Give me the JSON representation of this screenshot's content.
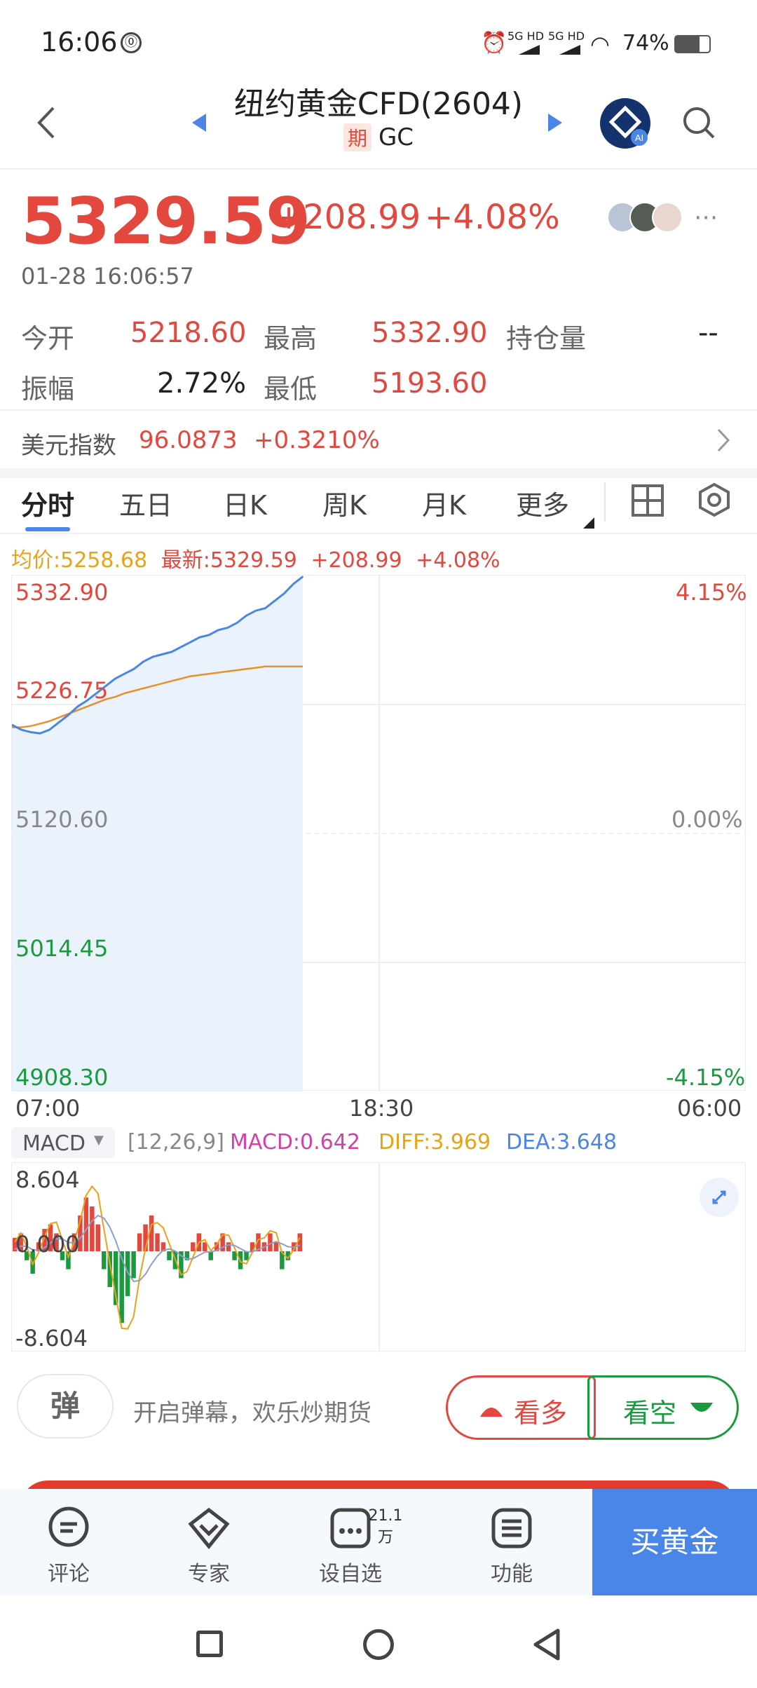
{
  "status_bar": {
    "time": "16:06",
    "net1": "5G HD",
    "net2": "5G HD",
    "battery": "74%"
  },
  "header": {
    "title": "纽约黄金CFD(2604)",
    "tag": "期",
    "code": "GC"
  },
  "quote": {
    "price": "5329.59",
    "change": "+208.99",
    "change_pct": "+4.08%",
    "timestamp": "01-28 16:06:57"
  },
  "stats": {
    "open_label": "今开",
    "open_value": "5218.60",
    "high_label": "最高",
    "high_value": "5332.90",
    "oi_label": "持仓量",
    "oi_value": "--",
    "amp_label": "振幅",
    "amp_value": "2.72%",
    "low_label": "最低",
    "low_value": "5193.60"
  },
  "dxy": {
    "label": "美元指数",
    "value": "96.0873",
    "change": "+0.3210%"
  },
  "tabs": [
    "分时",
    "五日",
    "日K",
    "周K",
    "月K",
    "更多"
  ],
  "legend": {
    "avg": "均价:5258.68",
    "last": "最新:5329.59",
    "chg": "+208.99",
    "pct": "+4.08%"
  },
  "chart_data": {
    "type": "line",
    "y_ticks": [
      "5332.90",
      "5226.75",
      "5120.60",
      "5014.45",
      "4908.30"
    ],
    "pct_ticks": [
      "4.15%",
      "0.00%",
      "-4.15%"
    ],
    "x_ticks": [
      "07:00",
      "18:30",
      "06:00"
    ],
    "ylim": [
      4908.3,
      5332.9
    ],
    "series": [
      {
        "name": "最新",
        "color": "#4a86e8",
        "values": [
          5210,
          5206,
          5204,
          5203,
          5206,
          5212,
          5218,
          5225,
          5230,
          5236,
          5242,
          5248,
          5252,
          5256,
          5262,
          5266,
          5268,
          5270,
          5274,
          5278,
          5282,
          5284,
          5288,
          5290,
          5294,
          5300,
          5304,
          5306,
          5312,
          5318,
          5326,
          5332
        ]
      },
      {
        "name": "均价",
        "color": "#e8912b",
        "values": [
          5208,
          5208,
          5209,
          5211,
          5213,
          5216,
          5219,
          5222,
          5225,
          5228,
          5231,
          5233,
          5236,
          5238,
          5240,
          5242,
          5244,
          5246,
          5248,
          5250,
          5251,
          5252,
          5253,
          5254,
          5255,
          5256,
          5257,
          5258,
          5258,
          5258,
          5258,
          5258
        ]
      }
    ]
  },
  "macd": {
    "label": "MACD",
    "params": "[12,26,9]",
    "macd": "MACD:0.642",
    "diff": "DIFF:3.969",
    "dea": "DEA:3.648",
    "top": "8.604",
    "mid": "0.000",
    "bottom": "-8.604",
    "bars": [
      1.5,
      2,
      -1,
      -2.5,
      1,
      2.5,
      3,
      2,
      -1,
      -2,
      2,
      4,
      6,
      5,
      3,
      -2,
      -4,
      -6,
      -8,
      -5,
      -3,
      2,
      3,
      4,
      2,
      1,
      -1,
      -2,
      -3,
      -1,
      1,
      2,
      1,
      -1,
      1,
      2,
      1,
      -1,
      -2,
      -1,
      1,
      2,
      1,
      2,
      1,
      -2,
      -1,
      1,
      2
    ]
  },
  "danmu": {
    "icon_char": "弹",
    "placeholder": "开启弹幕，欢乐炒期货"
  },
  "vote": {
    "bull": "看多",
    "bear": "看空"
  },
  "nav": [
    {
      "label": "评论"
    },
    {
      "label": "专家"
    },
    {
      "label": "设自选",
      "badge": "21.1万"
    },
    {
      "label": "功能"
    }
  ],
  "buy": "买黄金",
  "colors": {
    "red": "#e2483d",
    "green": "#1a9a3e",
    "blue": "#4a86e8",
    "orange": "#e8912b"
  }
}
